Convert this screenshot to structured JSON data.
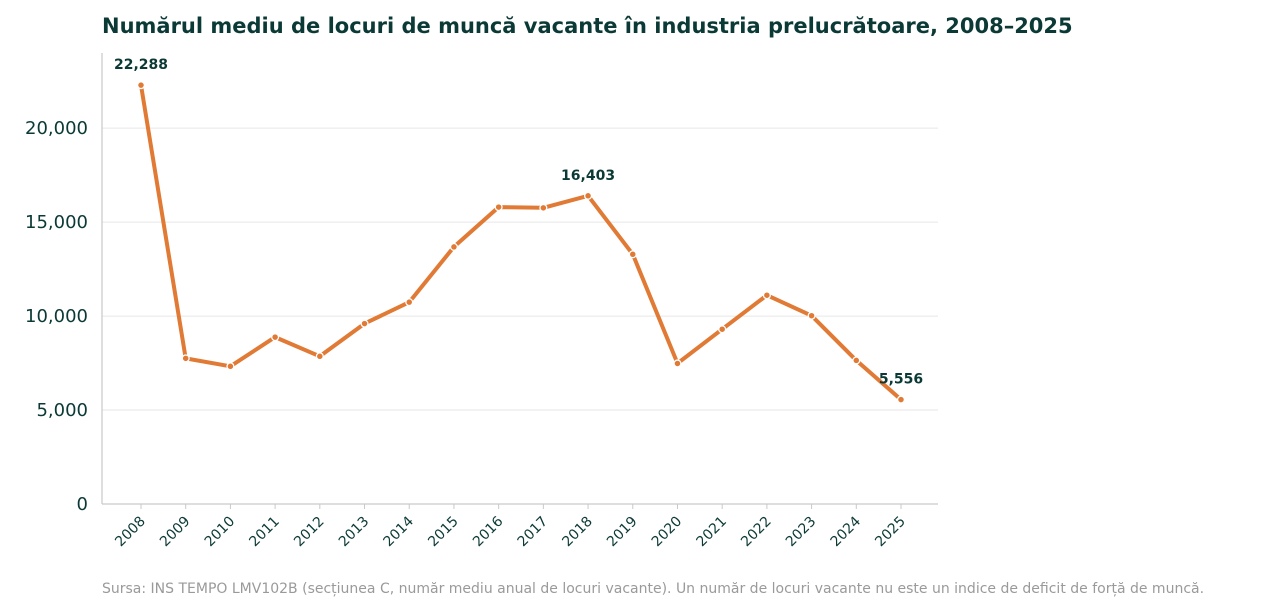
{
  "chart_data": {
    "type": "line",
    "title": "Numărul mediu de locuri de muncă vacante în industria prelucrătoare, 2008–2025",
    "xlabel": "",
    "ylabel": "",
    "x": [
      "2008",
      "2009",
      "2010",
      "2011",
      "2012",
      "2013",
      "2014",
      "2015",
      "2016",
      "2017",
      "2018",
      "2019",
      "2020",
      "2021",
      "2022",
      "2023",
      "2024",
      "2025"
    ],
    "series": [
      {
        "values": [
          22288,
          7750,
          7330,
          8880,
          7860,
          9600,
          10740,
          13680,
          15800,
          15760,
          16403,
          13290,
          7480,
          9300,
          11110,
          10020,
          7640,
          5556
        ]
      }
    ],
    "ylim": [
      0,
      24000
    ],
    "yticks": [
      0,
      5000,
      10000,
      15000,
      20000
    ],
    "ytick_labels": [
      "0",
      "5,000",
      "10,000",
      "15,000",
      "20,000"
    ],
    "annotations": [
      {
        "x": "2008",
        "value": 22288,
        "text": "22,288"
      },
      {
        "x": "2018",
        "value": 16403,
        "text": "16,403"
      },
      {
        "x": "2025",
        "value": 5556,
        "text": "5,556"
      }
    ],
    "grid": "horizontal",
    "line_color": "#e07a35",
    "source": "Sursa: INS TEMPO LMV102B (secțiunea C, număr mediu anual de locuri vacante). Un număr de locuri vacante nu este un indice de deficit de forță de muncă."
  }
}
